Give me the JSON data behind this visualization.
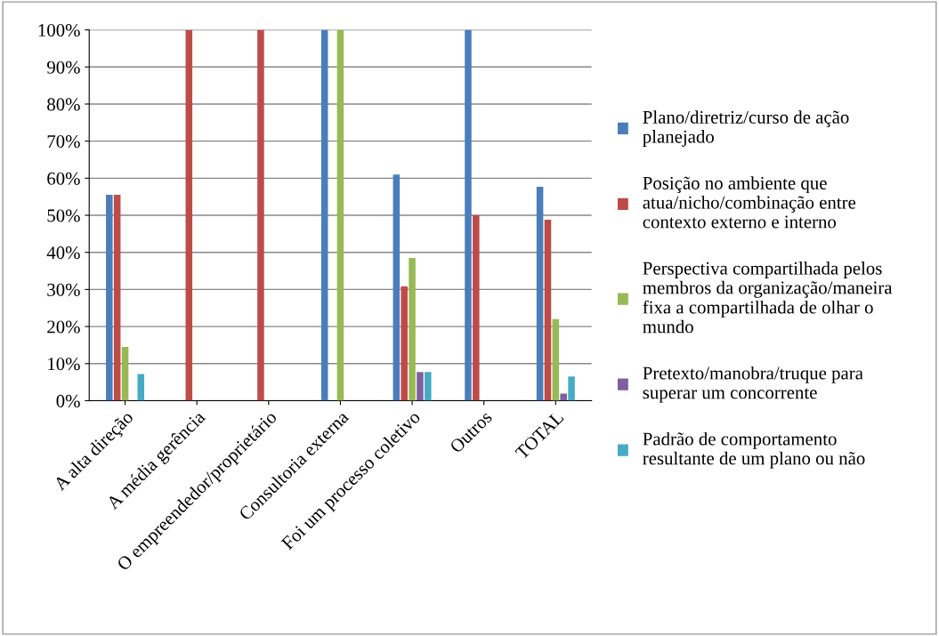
{
  "chart_data": {
    "type": "bar",
    "categories": [
      "A alta direção",
      "A média gerência",
      "O empreendedor/proprietário",
      "Consultoria externa",
      "Foi um processo coletivo",
      "Outros",
      "TOTAL"
    ],
    "series": [
      {
        "name": "Plano/diretriz/curso de ação\nplanejado",
        "color": "#4a7ebb",
        "values": [
          55.5,
          0,
          0,
          100,
          61,
          100,
          57.7
        ]
      },
      {
        "name": "Posição no ambiente que\natua/nicho/combinação entre\ncontexto externo e interno",
        "color": "#be4b48",
        "values": [
          55.5,
          100,
          100,
          0,
          30.8,
          50,
          48.8
        ]
      },
      {
        "name": "Perspectiva compartilhada pelos\nmembros da organização/maneira\nfixa a compartilhada de olhar o\nmundo",
        "color": "#98b954",
        "values": [
          14.5,
          0,
          0,
          100,
          38.5,
          0,
          22
        ]
      },
      {
        "name": "Pretexto/manobra/truque para\nsuperar um concorrente",
        "color": "#7d60a0",
        "values": [
          0,
          0,
          0,
          0,
          7.7,
          0,
          1.9
        ]
      },
      {
        "name": "Padrão de comportamento\nresultante de um plano ou não",
        "color": "#46aac5",
        "values": [
          7.2,
          0,
          0,
          0,
          7.7,
          0,
          6.5
        ]
      }
    ],
    "ylim": [
      0,
      100
    ],
    "yticks": [
      {
        "value": 0,
        "label": "0%"
      },
      {
        "value": 10,
        "label": "10%"
      },
      {
        "value": 20,
        "label": "20%"
      },
      {
        "value": 30,
        "label": "30%"
      },
      {
        "value": 40,
        "label": "40%"
      },
      {
        "value": 50,
        "label": "50%"
      },
      {
        "value": 60,
        "label": "60%"
      },
      {
        "value": 70,
        "label": "70%"
      },
      {
        "value": 80,
        "label": "80%"
      },
      {
        "value": 90,
        "label": "90%"
      },
      {
        "value": 100,
        "label": "100%"
      }
    ],
    "grid": "y",
    "legend": "right"
  }
}
